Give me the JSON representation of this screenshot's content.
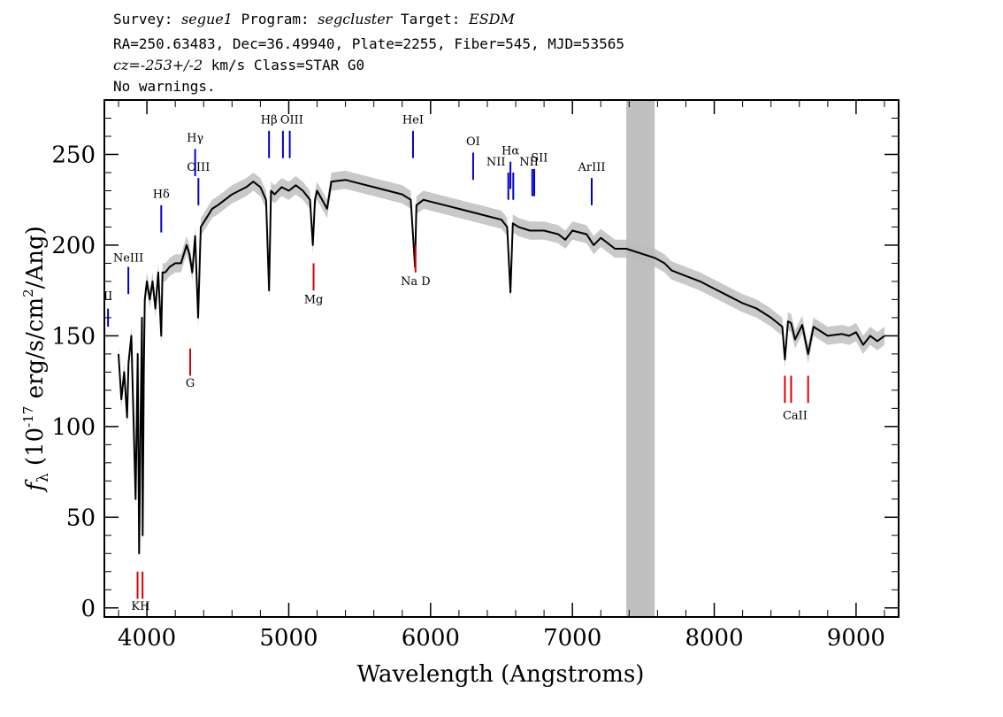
{
  "header": {
    "line1": {
      "survey_label": "Survey: ",
      "survey": "segue1",
      "program_label": " Program: ",
      "program": "segcluster",
      "target_label": " Target: ",
      "target": "ESDM"
    },
    "line2": "RA=250.63483, Dec=36.49940, Plate=2255, Fiber=545, MJD=53565",
    "line3": {
      "cz": "cz=-253+/-2",
      "rest": " km/s Class=STAR G0"
    },
    "line4": "No warnings."
  },
  "chart_data": {
    "type": "line",
    "title": "",
    "xlabel": "Wavelength (Angstroms)",
    "ylabel": "f_λ (10^-17 erg/s/cm^2/Ang)",
    "xlim": [
      3700,
      9300
    ],
    "ylim": [
      -5,
      280
    ],
    "xticks": [
      4000,
      5000,
      6000,
      7000,
      8000,
      9000
    ],
    "yticks": [
      0,
      50,
      100,
      150,
      200,
      250
    ],
    "colors": {
      "spectrum": "#000000",
      "error_band": "#bbbbbb",
      "masked_region": "#c0c0c0",
      "emission_lines": "#0000cc",
      "absorption_lines": "#dd0000"
    },
    "masked_region": [
      7380,
      7580
    ],
    "spectrum": {
      "x": [
        3800,
        3820,
        3840,
        3860,
        3870,
        3890,
        3900,
        3920,
        3935,
        3945,
        3955,
        3965,
        3970,
        3978,
        3985,
        4000,
        4020,
        4040,
        4060,
        4080,
        4101,
        4110,
        4130,
        4160,
        4200,
        4240,
        4280,
        4300,
        4320,
        4340,
        4361,
        4380,
        4420,
        4460,
        4500,
        4550,
        4600,
        4650,
        4700,
        4750,
        4800,
        4840,
        4861,
        4875,
        4900,
        4950,
        5000,
        5050,
        5100,
        5150,
        5170,
        5185,
        5200,
        5270,
        5300,
        5400,
        5500,
        5600,
        5700,
        5800,
        5860,
        5890,
        5900,
        5950,
        6000,
        6100,
        6200,
        6300,
        6400,
        6500,
        6540,
        6563,
        6580,
        6620,
        6700,
        6800,
        6900,
        6950,
        7000,
        7100,
        7150,
        7200,
        7300,
        7380,
        7580,
        7650,
        7700,
        7800,
        7900,
        8000,
        8100,
        8200,
        8300,
        8400,
        8480,
        8498,
        8520,
        8542,
        8570,
        8620,
        8662,
        8700,
        8800,
        8900,
        8950,
        9000,
        9050,
        9100,
        9150,
        9200
      ],
      "y": [
        140,
        115,
        130,
        105,
        135,
        150,
        120,
        60,
        140,
        30,
        100,
        160,
        40,
        130,
        170,
        180,
        170,
        180,
        165,
        185,
        150,
        185,
        185,
        188,
        190,
        190,
        200,
        195,
        185,
        205,
        160,
        210,
        215,
        220,
        222,
        225,
        228,
        230,
        232,
        235,
        232,
        225,
        175,
        230,
        228,
        232,
        230,
        233,
        230,
        225,
        200,
        225,
        230,
        220,
        235,
        236,
        234,
        232,
        230,
        228,
        225,
        188,
        222,
        225,
        224,
        222,
        220,
        218,
        216,
        214,
        210,
        174,
        212,
        210,
        208,
        208,
        206,
        203,
        208,
        206,
        200,
        204,
        198,
        198,
        193,
        190,
        186,
        183,
        180,
        176,
        172,
        168,
        165,
        160,
        155,
        137,
        158,
        157,
        148,
        156,
        140,
        155,
        150,
        151,
        150,
        152,
        145,
        150,
        147,
        150
      ]
    },
    "emission_lines": [
      {
        "label": "NeII",
        "x": 3726
      },
      {
        "label": "NeIII",
        "x": 3869
      },
      {
        "label": "Hδ",
        "x": 4101
      },
      {
        "label": "Hγ",
        "x": 4340
      },
      {
        "label": "OIII",
        "x": 4363
      },
      {
        "label": "Hβ",
        "x": 4861
      },
      {
        "label": "OIII",
        "x": 4959
      },
      {
        "label": "OIII",
        "x": 5007
      },
      {
        "label": "HeI",
        "x": 5876
      },
      {
        "label": "OI",
        "x": 6300
      },
      {
        "label": "NII",
        "x": 6548
      },
      {
        "label": "Hα",
        "x": 6563
      },
      {
        "label": "NII",
        "x": 6583
      },
      {
        "label": "SII",
        "x": 6717
      },
      {
        "label": "SII",
        "x": 6731
      },
      {
        "label": "ArIII",
        "x": 7136
      }
    ],
    "absorption_lines": [
      {
        "label": "K",
        "x": 3934
      },
      {
        "label": "H",
        "x": 3969
      },
      {
        "label": "G",
        "x": 4305
      },
      {
        "label": "Mg",
        "x": 5175
      },
      {
        "label": "Na D",
        "x": 5894
      },
      {
        "label": "CaII",
        "x": 8498
      },
      {
        "label": "CaII",
        "x": 8542
      },
      {
        "label": "CaII",
        "x": 8662
      }
    ],
    "label_texts": {
      "nii_short": "II",
      "neiii": "NeIII",
      "hdelta": "Hδ",
      "hgamma": "Hγ",
      "oiii_a": "OIII",
      "hbeta": "Hβ",
      "oiii_b": "OIII",
      "hei": "HeI",
      "oi": "OI",
      "nii_a": "NII",
      "halpha": "Hα",
      "nii_b": "NII",
      "sii": "SII",
      "ariii": "ArIII",
      "kh": "KH",
      "g": "G",
      "mg": "Mg",
      "nad": "Na D",
      "caii": "CaII"
    }
  }
}
